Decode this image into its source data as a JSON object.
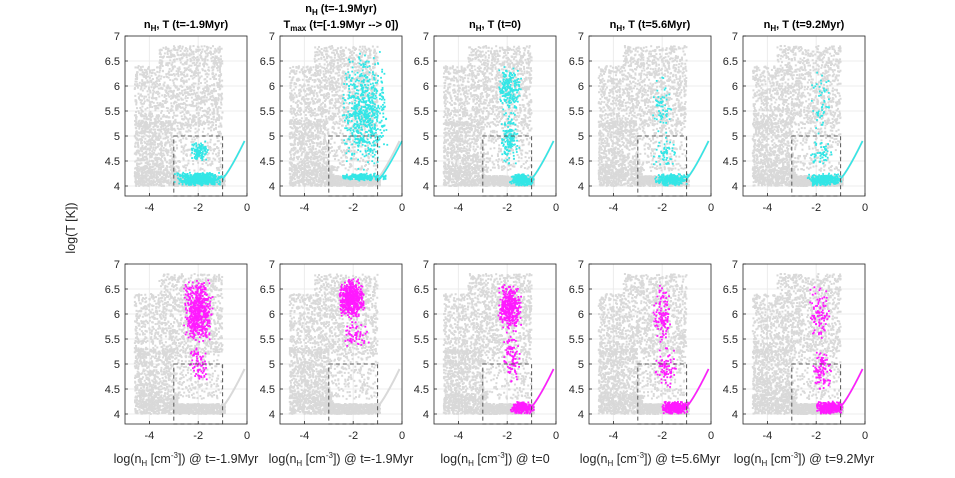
{
  "chart_data": {
    "type": "scatter",
    "ylabel": "log(T [K])",
    "xlim": [
      -5,
      0
    ],
    "ylim": [
      3.8,
      7
    ],
    "xticks": [
      "-4",
      "-2",
      "0"
    ],
    "yticks": [
      "4",
      "4.5",
      "5",
      "5.5",
      "6",
      "6.5",
      "7"
    ],
    "grid": true,
    "box": {
      "x": [
        -3,
        -1
      ],
      "y": [
        3.8,
        5.0
      ],
      "style": "dashed"
    },
    "colors": {
      "background_points": "#d9d9d9",
      "row1": "#33e6e6",
      "row2": "#ff1aff",
      "box": "#555555"
    },
    "columns": [
      {
        "title_main": "n",
        "title_sub": "H",
        "title_rest": ", T (t=-1.9Myr)",
        "xlabel": {
          "pre": "log(n",
          "sub": "H",
          "mid": " [cm",
          "sup": "-3",
          "post": "]) @ t=-1.9Myr"
        }
      },
      {
        "title_line1": {
          "main": "n",
          "sub": "H",
          "rest": " (t=-1.9Myr)"
        },
        "title_line2": {
          "main": "T",
          "sub": "max",
          "rest": " (t=[-1.9Myr --> 0])"
        },
        "xlabel": {
          "pre": "log(n",
          "sub": "H",
          "mid": " [cm",
          "sup": "-3",
          "post": "]) @ t=-1.9Myr"
        }
      },
      {
        "title_main": "n",
        "title_sub": "H",
        "title_rest": ", T (t=0)",
        "xlabel": {
          "pre": "log(n",
          "sub": "H",
          "mid": " [cm",
          "sup": "-3",
          "post": "]) @ t=0"
        }
      },
      {
        "title_main": "n",
        "title_sub": "H",
        "title_rest": ", T (t=5.6Myr)",
        "xlabel": {
          "pre": "log(n",
          "sub": "H",
          "mid": " [cm",
          "sup": "-3",
          "post": "]) @ t=5.6Myr"
        }
      },
      {
        "title_main": "n",
        "title_sub": "H",
        "title_rest": ", T (t=9.2Myr)",
        "xlabel": {
          "pre": "log(n",
          "sub": "H",
          "mid": " [cm",
          "sup": "-3",
          "post": "]) @ t=9.2Myr"
        }
      }
    ],
    "panels": [
      {
        "row": 0,
        "col": 0,
        "color": "row1",
        "clusters": [
          {
            "x": [
              -3.0,
              -0.9
            ],
            "y": [
              4.0,
              4.28
            ],
            "n": 520
          },
          {
            "x": [
              -2.3,
              -1.6
            ],
            "y": [
              4.5,
              4.9
            ],
            "n": 110
          },
          {
            "x": [
              -1.0,
              -0.1
            ],
            "y": [
              4.15,
              4.9
            ],
            "n": 70,
            "line": true
          }
        ]
      },
      {
        "row": 0,
        "col": 1,
        "color": "row1",
        "clusters": [
          {
            "x": [
              -2.5,
              -0.6
            ],
            "y": [
              4.1,
              4.25
            ],
            "n": 220
          },
          {
            "x": [
              -2.5,
              -0.5
            ],
            "y": [
              4.3,
              6.7
            ],
            "n": 650
          },
          {
            "x": [
              -1.0,
              0.0
            ],
            "y": [
              4.1,
              4.9
            ],
            "n": 30,
            "line": true
          }
        ]
      },
      {
        "row": 0,
        "col": 2,
        "color": "row1",
        "clusters": [
          {
            "x": [
              -2.4,
              -1.4
            ],
            "y": [
              5.5,
              6.4
            ],
            "n": 200
          },
          {
            "x": [
              -2.3,
              -1.5
            ],
            "y": [
              4.4,
              5.5
            ],
            "n": 150
          },
          {
            "x": [
              -1.9,
              -0.9
            ],
            "y": [
              4.0,
              4.25
            ],
            "n": 260
          },
          {
            "x": [
              -1.0,
              -0.1
            ],
            "y": [
              4.15,
              4.9
            ],
            "n": 70,
            "line": true
          }
        ]
      },
      {
        "row": 0,
        "col": 3,
        "color": "row1",
        "clusters": [
          {
            "x": [
              -2.4,
              -1.6
            ],
            "y": [
              4.9,
              6.3
            ],
            "n": 60
          },
          {
            "x": [
              -2.4,
              -1.4
            ],
            "y": [
              4.4,
              4.9
            ],
            "n": 50
          },
          {
            "x": [
              -2.3,
              -0.9
            ],
            "y": [
              4.0,
              4.25
            ],
            "n": 300
          },
          {
            "x": [
              -1.0,
              -0.1
            ],
            "y": [
              4.15,
              4.9
            ],
            "n": 70,
            "line": true
          }
        ]
      },
      {
        "row": 0,
        "col": 4,
        "color": "row1",
        "clusters": [
          {
            "x": [
              -2.3,
              -1.3
            ],
            "y": [
              4.9,
              6.4
            ],
            "n": 50
          },
          {
            "x": [
              -2.3,
              -1.3
            ],
            "y": [
              4.4,
              4.9
            ],
            "n": 50
          },
          {
            "x": [
              -2.4,
              -0.9
            ],
            "y": [
              4.0,
              4.25
            ],
            "n": 340
          },
          {
            "x": [
              -1.0,
              -0.1
            ],
            "y": [
              4.15,
              4.9
            ],
            "n": 70,
            "line": true
          }
        ]
      },
      {
        "row": 1,
        "col": 0,
        "color": "row2",
        "clusters": [
          {
            "x": [
              -2.6,
              -1.4
            ],
            "y": [
              5.4,
              6.7
            ],
            "n": 550
          },
          {
            "x": [
              -2.4,
              -1.6
            ],
            "y": [
              4.6,
              5.4
            ],
            "n": 70
          }
        ]
      },
      {
        "row": 1,
        "col": 1,
        "color": "row2",
        "clusters": [
          {
            "x": [
              -2.6,
              -1.5
            ],
            "y": [
              5.9,
              6.7
            ],
            "n": 520
          },
          {
            "x": [
              -2.5,
              -1.3
            ],
            "y": [
              5.3,
              5.9
            ],
            "n": 60
          }
        ]
      },
      {
        "row": 1,
        "col": 2,
        "color": "row2",
        "clusters": [
          {
            "x": [
              -2.4,
              -1.4
            ],
            "y": [
              5.7,
              6.6
            ],
            "n": 350
          },
          {
            "x": [
              -2.2,
              -1.4
            ],
            "y": [
              4.6,
              5.7
            ],
            "n": 90
          },
          {
            "x": [
              -1.9,
              -0.9
            ],
            "y": [
              4.0,
              4.25
            ],
            "n": 220
          },
          {
            "x": [
              -1.0,
              -0.1
            ],
            "y": [
              4.15,
              4.9
            ],
            "n": 70,
            "line": true
          }
        ]
      },
      {
        "row": 1,
        "col": 3,
        "color": "row2",
        "clusters": [
          {
            "x": [
              -2.4,
              -1.6
            ],
            "y": [
              5.4,
              6.6
            ],
            "n": 120
          },
          {
            "x": [
              -2.3,
              -1.4
            ],
            "y": [
              4.5,
              5.4
            ],
            "n": 80
          },
          {
            "x": [
              -2.0,
              -0.9
            ],
            "y": [
              4.0,
              4.25
            ],
            "n": 400
          },
          {
            "x": [
              -1.0,
              -0.1
            ],
            "y": [
              4.15,
              4.9
            ],
            "n": 70,
            "line": true
          }
        ]
      },
      {
        "row": 1,
        "col": 4,
        "color": "row2",
        "clusters": [
          {
            "x": [
              -2.3,
              -1.4
            ],
            "y": [
              5.4,
              6.6
            ],
            "n": 90
          },
          {
            "x": [
              -2.2,
              -1.3
            ],
            "y": [
              4.4,
              5.4
            ],
            "n": 90
          },
          {
            "x": [
              -2.0,
              -0.9
            ],
            "y": [
              4.0,
              4.25
            ],
            "n": 420
          },
          {
            "x": [
              -1.0,
              -0.1
            ],
            "y": [
              4.15,
              4.9
            ],
            "n": 70,
            "line": true
          }
        ]
      }
    ]
  }
}
